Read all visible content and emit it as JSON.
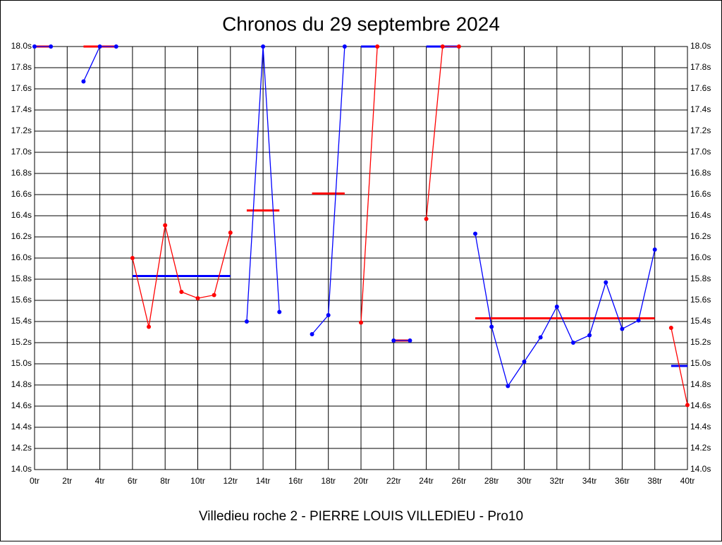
{
  "chart_data": {
    "type": "line",
    "title": "Chronos du 29 septembre 2024",
    "subtitle": "Villedieu roche 2 - PIERRE LOUIS VILLEDIEU - Pro10",
    "xlim": [
      0,
      40
    ],
    "ylim": [
      14.0,
      18.0
    ],
    "xticks": [
      {
        "value": 0,
        "label": "0tr"
      },
      {
        "value": 2,
        "label": "2tr"
      },
      {
        "value": 4,
        "label": "4tr"
      },
      {
        "value": 6,
        "label": "6tr"
      },
      {
        "value": 8,
        "label": "8tr"
      },
      {
        "value": 10,
        "label": "10tr"
      },
      {
        "value": 12,
        "label": "12tr"
      },
      {
        "value": 14,
        "label": "14tr"
      },
      {
        "value": 16,
        "label": "16tr"
      },
      {
        "value": 18,
        "label": "18tr"
      },
      {
        "value": 20,
        "label": "20tr"
      },
      {
        "value": 22,
        "label": "22tr"
      },
      {
        "value": 24,
        "label": "24tr"
      },
      {
        "value": 26,
        "label": "26tr"
      },
      {
        "value": 28,
        "label": "28tr"
      },
      {
        "value": 30,
        "label": "30tr"
      },
      {
        "value": 32,
        "label": "32tr"
      },
      {
        "value": 34,
        "label": "34tr"
      },
      {
        "value": 36,
        "label": "36tr"
      },
      {
        "value": 38,
        "label": "38tr"
      },
      {
        "value": 40,
        "label": "40tr"
      }
    ],
    "yticks": [
      {
        "value": 14.0,
        "label": "14.0s"
      },
      {
        "value": 14.2,
        "label": "14.2s"
      },
      {
        "value": 14.4,
        "label": "14.4s"
      },
      {
        "value": 14.6,
        "label": "14.6s"
      },
      {
        "value": 14.8,
        "label": "14.8s"
      },
      {
        "value": 15.0,
        "label": "15.0s"
      },
      {
        "value": 15.2,
        "label": "15.2s"
      },
      {
        "value": 15.4,
        "label": "15.4s"
      },
      {
        "value": 15.6,
        "label": "15.6s"
      },
      {
        "value": 15.8,
        "label": "15.8s"
      },
      {
        "value": 16.0,
        "label": "16.0s"
      },
      {
        "value": 16.2,
        "label": "16.2s"
      },
      {
        "value": 16.4,
        "label": "16.4s"
      },
      {
        "value": 16.6,
        "label": "16.6s"
      },
      {
        "value": 16.8,
        "label": "16.8s"
      },
      {
        "value": 17.0,
        "label": "17.0s"
      },
      {
        "value": 17.2,
        "label": "17.2s"
      },
      {
        "value": 17.4,
        "label": "17.4s"
      },
      {
        "value": 17.6,
        "label": "17.6s"
      },
      {
        "value": 17.8,
        "label": "17.8s"
      },
      {
        "value": 18.0,
        "label": "18.0s"
      }
    ],
    "grid": true,
    "series": [
      {
        "color": "#0000ff",
        "x": [
          0,
          1
        ],
        "values": [
          18.0,
          18.0
        ],
        "average": 18.0,
        "average_color": "#ff0000"
      },
      {
        "color": "#0000ff",
        "x": [
          3,
          4,
          5
        ],
        "values": [
          17.67,
          18.0,
          18.0
        ],
        "average": 18.0,
        "average_color": "#ff0000"
      },
      {
        "color": "#ff0000",
        "x": [
          6,
          7,
          8,
          9,
          10,
          11,
          12
        ],
        "values": [
          16.0,
          15.35,
          16.31,
          15.68,
          15.62,
          15.65,
          16.24
        ],
        "average": 15.83,
        "average_color": "#0000ff"
      },
      {
        "color": "#0000ff",
        "x": [
          13,
          14,
          15
        ],
        "values": [
          15.4,
          18.0,
          15.49
        ],
        "average": 16.45,
        "average_color": "#ff0000"
      },
      {
        "color": "#0000ff",
        "x": [
          17,
          18,
          19
        ],
        "values": [
          15.28,
          15.46,
          18.0
        ],
        "average": 16.61,
        "average_color": "#ff0000"
      },
      {
        "color": "#ff0000",
        "x": [
          20,
          21
        ],
        "values": [
          15.39,
          18.0
        ],
        "average": 18.0,
        "average_color": "#0000ff"
      },
      {
        "color": "#0000ff",
        "x": [
          22,
          23
        ],
        "values": [
          15.22,
          15.22
        ],
        "average": 15.22,
        "average_color": "#ff0000"
      },
      {
        "color": "#ff0000",
        "x": [
          24,
          25,
          26
        ],
        "values": [
          16.37,
          18.0,
          18.0
        ],
        "average": 18.0,
        "average_color": "#0000ff"
      },
      {
        "color": "#0000ff",
        "x": [
          27,
          28,
          29,
          30,
          31,
          32,
          33,
          34,
          35,
          36,
          37,
          38
        ],
        "values": [
          16.23,
          15.35,
          14.79,
          15.02,
          15.25,
          15.54,
          15.2,
          15.27,
          15.77,
          15.33,
          15.41,
          16.08
        ],
        "average": 15.43,
        "average_color": "#ff0000"
      },
      {
        "color": "#ff0000",
        "x": [
          39,
          40
        ],
        "values": [
          15.34,
          14.61
        ],
        "average": 14.98,
        "average_color": "#0000ff"
      }
    ]
  }
}
